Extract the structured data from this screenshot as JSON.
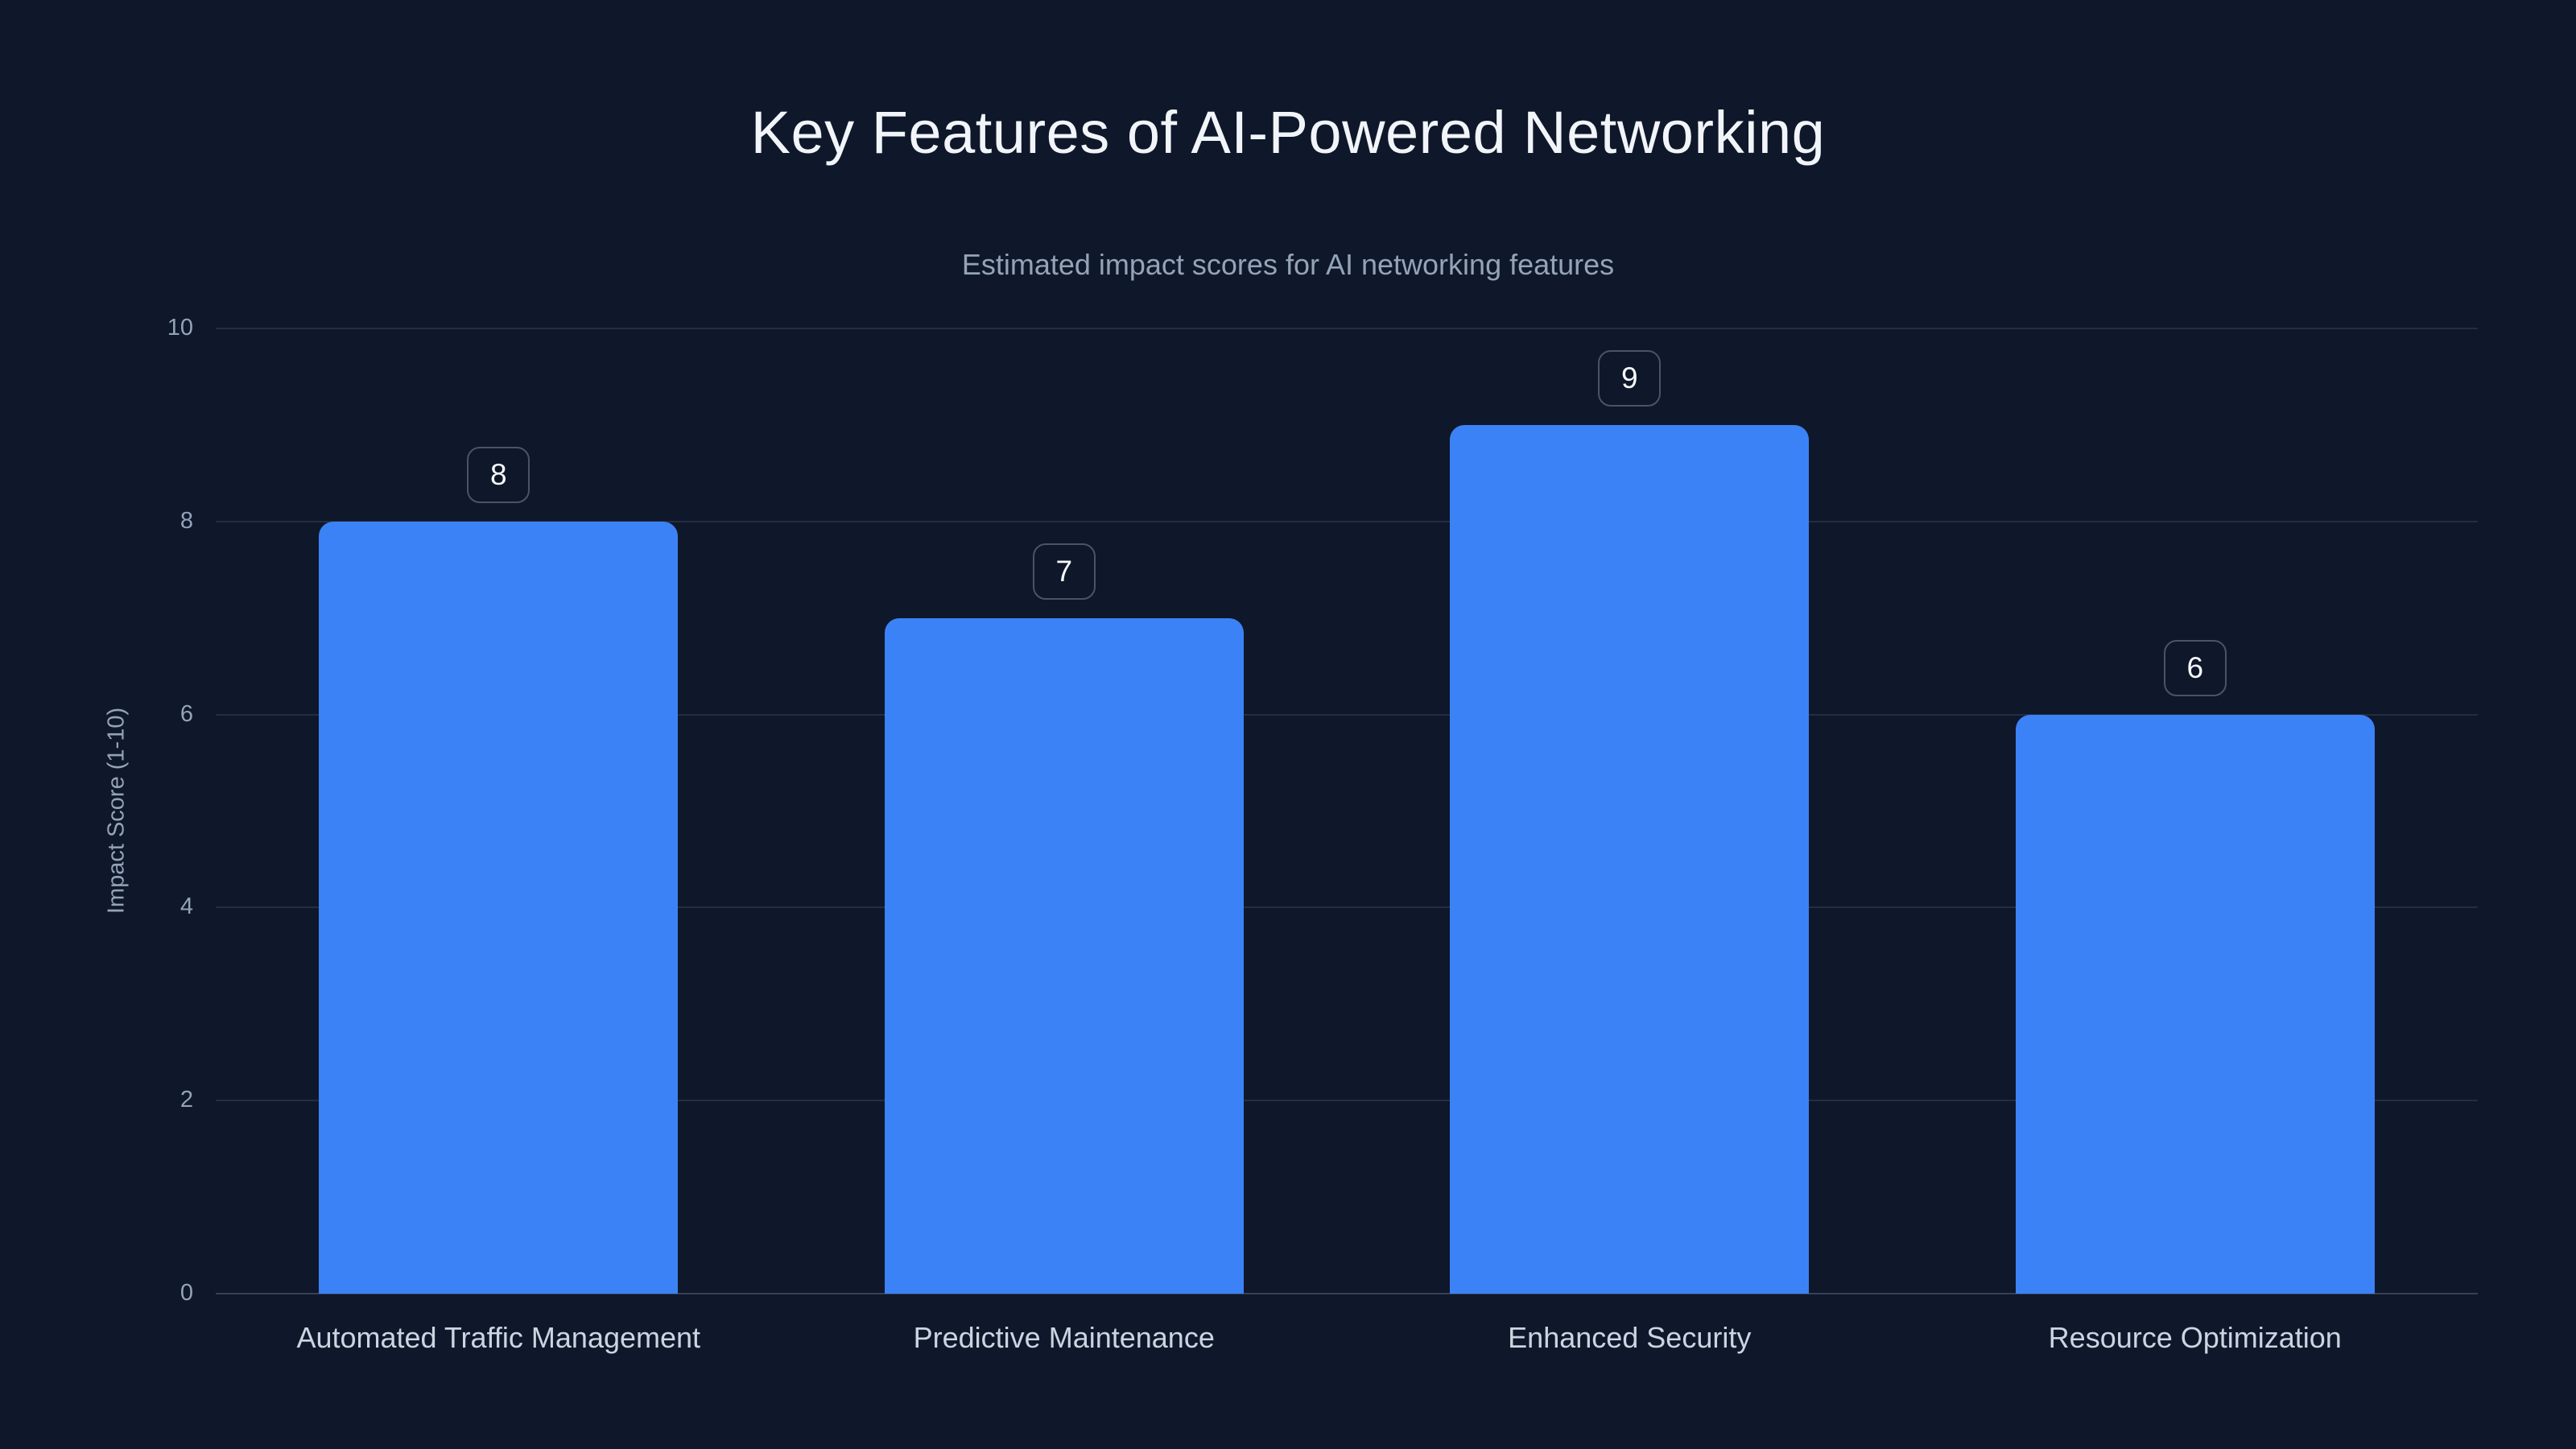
{
  "header": {
    "title": "Key Features of AI-Powered Networking",
    "subtitle": "Estimated impact scores for AI networking features"
  },
  "chart_data": {
    "type": "bar",
    "title": "Key Features of AI-Powered Networking",
    "subtitle": "Estimated impact scores for AI networking features",
    "categories": [
      "Automated Traffic Management",
      "Predictive Maintenance",
      "Enhanced Security",
      "Resource Optimization"
    ],
    "values": [
      8,
      7,
      9,
      6
    ],
    "value_labels": [
      "8",
      "7",
      "9",
      "6"
    ],
    "xlabel": "",
    "ylabel": "Impact Score (1-10)",
    "ylim": [
      0,
      10
    ],
    "yticks": [
      0,
      2,
      4,
      6,
      8,
      10
    ],
    "grid": "horizontal",
    "legend": "none",
    "colors": {
      "background": "#0f172a",
      "bar": "#3b82f6",
      "title": "#f1f5f9",
      "subtitle": "#94a3b8",
      "tick_label": "#94a3b8",
      "category_label": "#cbd5e1",
      "badge_border": "#475569",
      "badge_text": "#f8fafc"
    }
  }
}
